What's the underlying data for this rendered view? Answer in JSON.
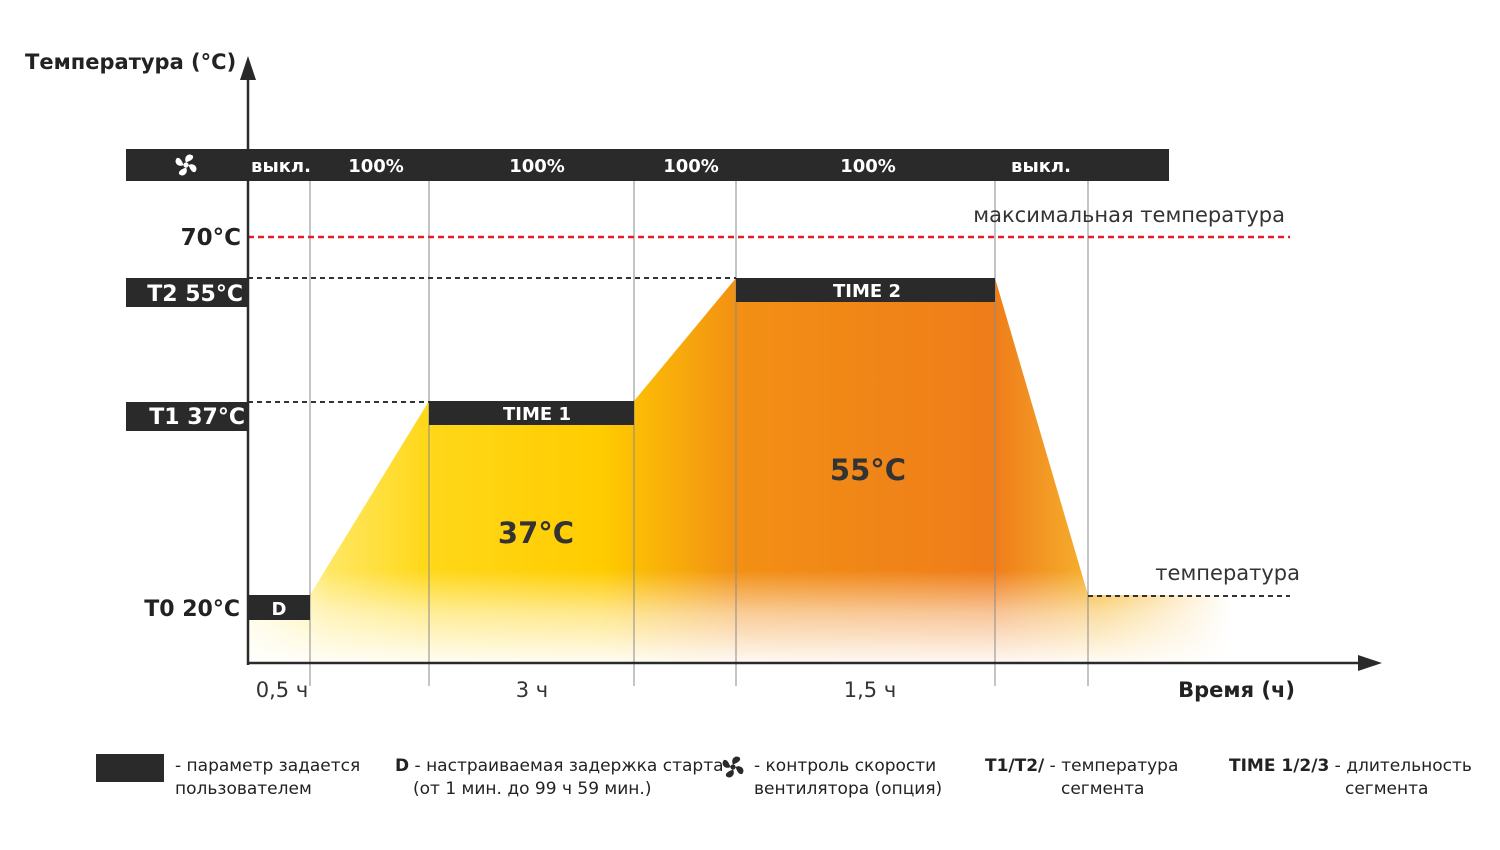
{
  "axes": {
    "y_title": "Температура (°C)",
    "x_title": "Время (ч)"
  },
  "fan_bar": {
    "icon": "fan-icon",
    "cells": [
      "выкл.",
      "100%",
      "100%",
      "100%",
      "100%",
      "выкл."
    ]
  },
  "temperature_levels": {
    "max_label": "70°C",
    "max_caption": "максимальная температура",
    "t2_label": "T2 55°C",
    "t1_label": "T1 37°C",
    "t0_label": "T0 20°C",
    "end_caption": "температура"
  },
  "segments": {
    "delay_label": "D",
    "time1_label": "TIME 1",
    "time2_label": "TIME 2",
    "zone1_temp": "37°C",
    "zone2_temp": "55°C"
  },
  "durations": [
    "0,5 ч",
    "3 ч",
    "1,5 ч"
  ],
  "colors": {
    "bar": "#2a2a2a",
    "yellow": "#ffcc00",
    "orange": "#ef7d1a",
    "max_line": "#e0202a"
  },
  "legend": {
    "user_param_text_1": "- параметр задается",
    "user_param_text_2": "пользователем",
    "delay_key": "D",
    "delay_text_1": " - настраиваемая задержка старта",
    "delay_text_2": "(от 1 мин. до 99 ч 59 мин.)",
    "fan_text_1": "- контроль скорости",
    "fan_text_2": "вентилятора (опция)",
    "temp_key": "T1/T2/",
    "temp_text_1": " - температура",
    "temp_text_2": "сегмента",
    "time_key": "TIME 1/2/3",
    "time_text_1": " - длительность",
    "time_text_2": "сегмента"
  }
}
